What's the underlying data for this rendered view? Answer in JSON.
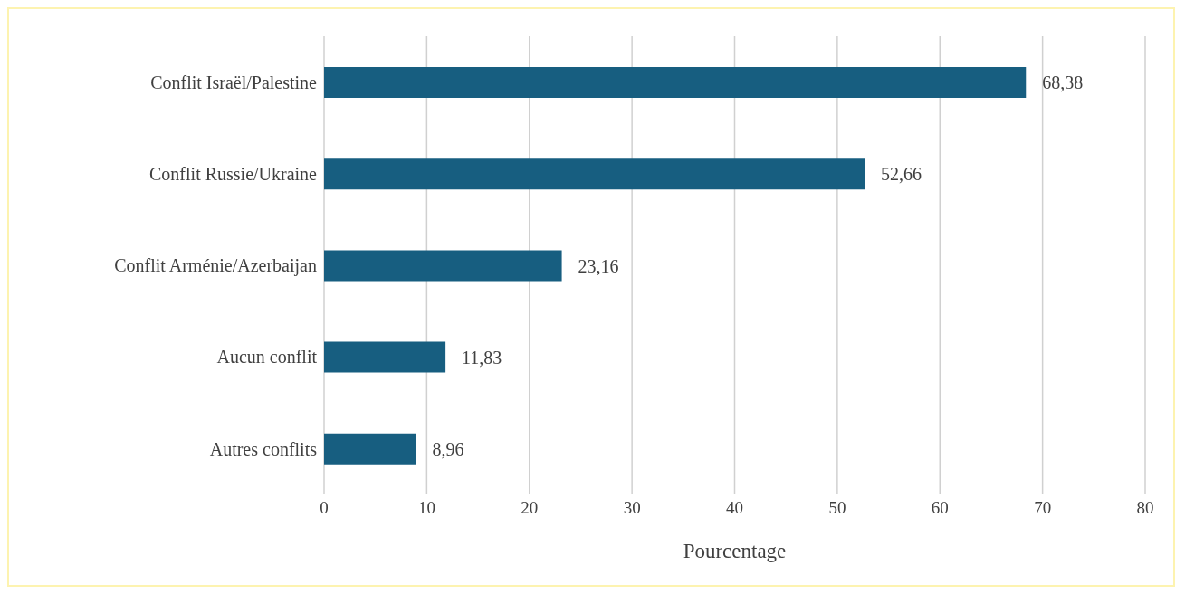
{
  "chart_data": {
    "type": "bar",
    "orientation": "horizontal",
    "xlabel": "Pourcentage",
    "categories": [
      "Conflit Israël/Palestine",
      "Conflit Russie/Ukraine",
      "Conflit Arménie/Azerbaijan",
      "Aucun conflit",
      "Autres conflits"
    ],
    "values": [
      68.38,
      52.66,
      23.16,
      11.83,
      8.96
    ],
    "value_labels": [
      "68,38",
      "52,66",
      "23,16",
      "11,83",
      "8,96"
    ],
    "color": "#175e80",
    "xlim": [
      0,
      80
    ],
    "xticks": [
      0,
      10,
      20,
      30,
      40,
      50,
      60,
      70,
      80
    ],
    "grid": "x",
    "legend": false
  }
}
